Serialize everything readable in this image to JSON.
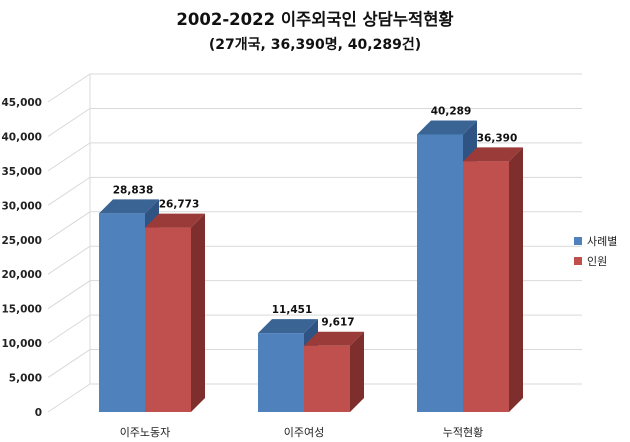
{
  "title": "2002-2022 이주외국인 상담누적현황",
  "subtitle": "(27개국, 36,390명, 40,289건)",
  "colors": {
    "series1_front": "#4F81BD",
    "series1_top": "#3A6494",
    "series1_side": "#2F5382",
    "series2_front": "#C0504D",
    "series2_top": "#9A3B39",
    "series2_side": "#7E2F2D"
  },
  "chart_data": {
    "type": "bar",
    "style": "3d-clustered-column",
    "title": "2002-2022 이주외국인 상담누적현황",
    "subtitle": "(27개국, 36,390명, 40,289건)",
    "categories": [
      "이주노동자",
      "이주여성",
      "누적현황"
    ],
    "series": [
      {
        "name": "사례별",
        "values": [
          28838,
          11451,
          40289
        ]
      },
      {
        "name": "인원",
        "values": [
          26773,
          9617,
          36390
        ]
      }
    ],
    "data_labels": [
      [
        "28,838",
        "11,451",
        "40,289"
      ],
      [
        "26,773",
        "9,617",
        "36,390"
      ]
    ],
    "y_ticks": [
      "0",
      "5,000",
      "10,000",
      "15,000",
      "20,000",
      "25,000",
      "30,000",
      "35,000",
      "40,000",
      "45,000"
    ],
    "ylim": [
      0,
      45000
    ],
    "grid": true,
    "legend_position": "right"
  }
}
